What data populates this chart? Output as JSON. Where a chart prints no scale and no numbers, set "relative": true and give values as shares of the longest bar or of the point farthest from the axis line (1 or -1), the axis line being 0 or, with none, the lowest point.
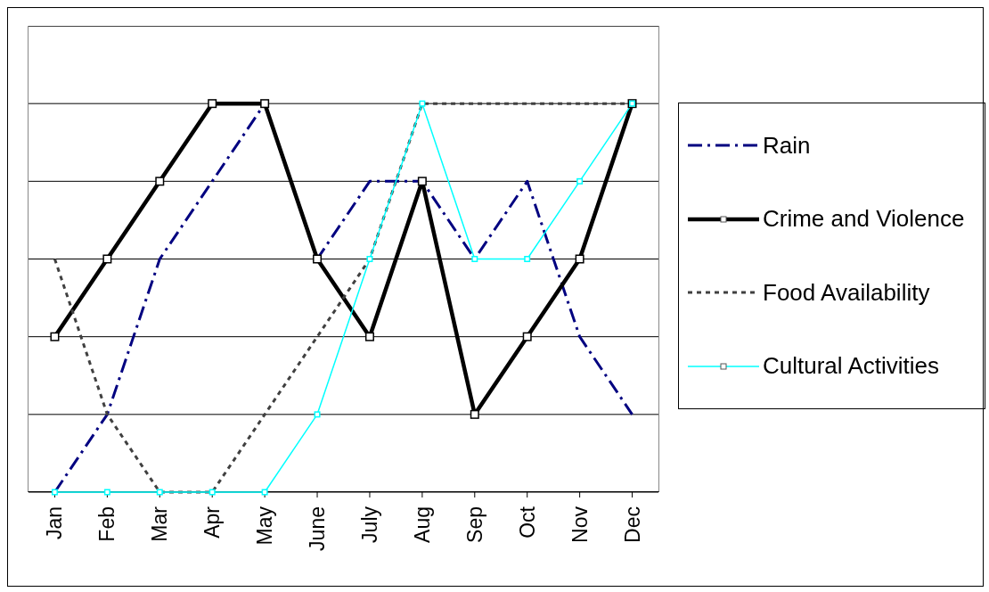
{
  "chart_data": {
    "type": "line",
    "relative": true,
    "grid": "y",
    "legend": "right",
    "categories": [
      "Jan",
      "Feb",
      "Mar",
      "Apr",
      "May",
      "June",
      "July",
      "Aug",
      "Sep",
      "Oct",
      "Nov",
      "Dec"
    ],
    "series": [
      {
        "name": "Rain",
        "color": "#000080",
        "line_style": "dashed",
        "marker": "none",
        "values": [
          0,
          0.2,
          0.6,
          0.8,
          1,
          0.6,
          0.8,
          0.8,
          0.6,
          0.8,
          0.4,
          0.2
        ]
      },
      {
        "name": "Crime and Violence",
        "color": "#000000",
        "line_style": "solid",
        "marker": "square",
        "values": [
          0.4,
          0.6,
          0.8,
          1,
          1,
          0.6,
          0.4,
          0.8,
          0.2,
          0.4,
          0.6,
          1
        ]
      },
      {
        "name": "Food Availability",
        "color": "#404040",
        "line_style": "dotted",
        "marker": "none",
        "values": [
          0.6,
          0.2,
          0,
          0,
          0.2,
          0.4,
          0.6,
          1,
          1,
          1,
          1,
          1
        ]
      },
      {
        "name": "Cultural Activities",
        "color": "#00ffff",
        "line_style": "solid",
        "marker": "square",
        "values": [
          0,
          0,
          0,
          0,
          0,
          0.2,
          0.6,
          1,
          0.6,
          0.6,
          0.8,
          1
        ]
      }
    ]
  }
}
